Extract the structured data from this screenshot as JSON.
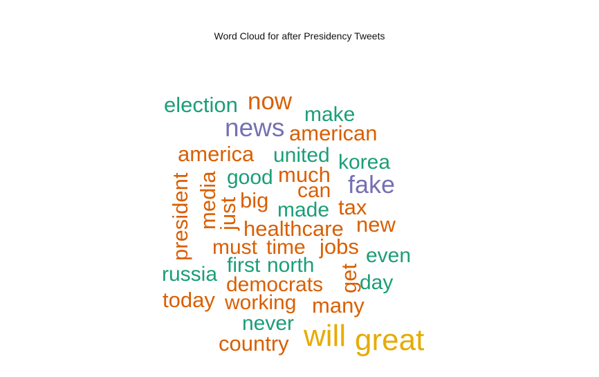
{
  "chart_data": {
    "type": "wordcloud",
    "title": "Word Cloud for after Presidency Tweets",
    "colors": {
      "green": "#1b9e77",
      "orange": "#d95f02",
      "purple": "#7570b3",
      "gold": "#e6ab02"
    },
    "words": [
      {
        "text": "great",
        "size": "largest",
        "color": "gold"
      },
      {
        "text": "will",
        "size": "largest",
        "color": "gold"
      },
      {
        "text": "news",
        "size": "large",
        "color": "purple"
      },
      {
        "text": "fake",
        "size": "large",
        "color": "purple"
      },
      {
        "text": "election",
        "size": "medium",
        "color": "green"
      },
      {
        "text": "now",
        "size": "medium",
        "color": "orange"
      },
      {
        "text": "make",
        "size": "medium",
        "color": "green"
      },
      {
        "text": "american",
        "size": "medium",
        "color": "orange"
      },
      {
        "text": "america",
        "size": "medium",
        "color": "orange"
      },
      {
        "text": "united",
        "size": "medium",
        "color": "green"
      },
      {
        "text": "korea",
        "size": "medium",
        "color": "green"
      },
      {
        "text": "president",
        "size": "medium",
        "color": "orange",
        "rotated": true
      },
      {
        "text": "media",
        "size": "medium",
        "color": "orange",
        "rotated": true
      },
      {
        "text": "just",
        "size": "medium",
        "color": "orange",
        "rotated": true
      },
      {
        "text": "good",
        "size": "medium",
        "color": "green"
      },
      {
        "text": "much",
        "size": "medium",
        "color": "orange"
      },
      {
        "text": "can",
        "size": "medium",
        "color": "orange"
      },
      {
        "text": "big",
        "size": "medium",
        "color": "orange"
      },
      {
        "text": "made",
        "size": "medium",
        "color": "green"
      },
      {
        "text": "tax",
        "size": "medium",
        "color": "orange"
      },
      {
        "text": "healthcare",
        "size": "medium",
        "color": "orange"
      },
      {
        "text": "new",
        "size": "medium",
        "color": "orange"
      },
      {
        "text": "must",
        "size": "medium",
        "color": "orange"
      },
      {
        "text": "time",
        "size": "medium",
        "color": "orange"
      },
      {
        "text": "jobs",
        "size": "medium",
        "color": "orange"
      },
      {
        "text": "even",
        "size": "medium",
        "color": "green"
      },
      {
        "text": "russia",
        "size": "medium",
        "color": "green"
      },
      {
        "text": "first",
        "size": "medium",
        "color": "green"
      },
      {
        "text": "north",
        "size": "medium",
        "color": "green"
      },
      {
        "text": "get",
        "size": "medium",
        "color": "orange",
        "rotated": true
      },
      {
        "text": "democrats",
        "size": "medium",
        "color": "orange"
      },
      {
        "text": "day",
        "size": "medium",
        "color": "green"
      },
      {
        "text": "today",
        "size": "medium",
        "color": "orange"
      },
      {
        "text": "working",
        "size": "medium",
        "color": "orange"
      },
      {
        "text": "many",
        "size": "medium",
        "color": "orange"
      },
      {
        "text": "never",
        "size": "medium",
        "color": "green"
      },
      {
        "text": "country",
        "size": "medium",
        "color": "orange"
      }
    ]
  }
}
